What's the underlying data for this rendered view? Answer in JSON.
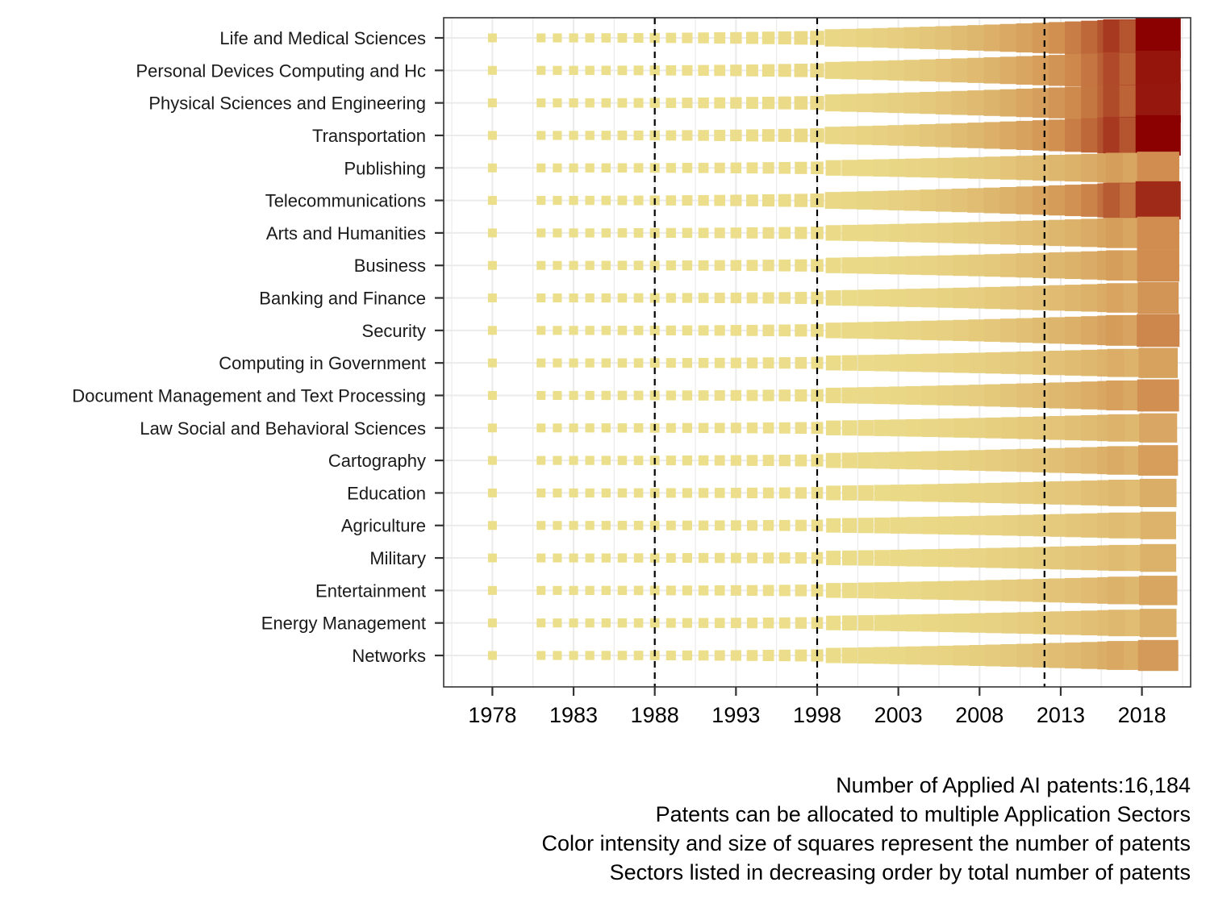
{
  "chart_data": {
    "type": "heatmap",
    "title": "",
    "xlabel": "",
    "ylabel": "",
    "xlim": [
      1975,
      2021
    ],
    "x_ticks": [
      1978,
      1983,
      1988,
      1993,
      1998,
      2003,
      2008,
      2013,
      2018
    ],
    "vlines": [
      1988,
      1998,
      2012
    ],
    "grid": true,
    "color_scale": {
      "low": "#ecdf8c",
      "mid": "#d08d4f",
      "high": "#8b0000"
    },
    "value_note": "relative patent intensity per sector-year, 0 to 1 (estimated from square size and color)",
    "categories": [
      {
        "name": "Life and Medical Sciences",
        "peak": 1.0
      },
      {
        "name": "Personal Devices Computing and Hc",
        "peak": 0.93
      },
      {
        "name": "Physical Sciences and Engineering",
        "peak": 0.92
      },
      {
        "name": "Transportation",
        "peak": 1.0
      },
      {
        "name": "Publishing",
        "peak": 0.5
      },
      {
        "name": "Telecommunications",
        "peak": 0.85
      },
      {
        "name": "Arts and Humanities",
        "peak": 0.5
      },
      {
        "name": "Business",
        "peak": 0.5
      },
      {
        "name": "Banking and Finance",
        "peak": 0.45
      },
      {
        "name": "Security",
        "peak": 0.52
      },
      {
        "name": "Computing in Government",
        "peak": 0.38
      },
      {
        "name": "Document Management and Text Processing",
        "peak": 0.48
      },
      {
        "name": "Law Social and Behavioral Sciences",
        "peak": 0.34
      },
      {
        "name": "Cartography",
        "peak": 0.4
      },
      {
        "name": "Education",
        "peak": 0.3
      },
      {
        "name": "Agriculture",
        "peak": 0.27
      },
      {
        "name": "Military",
        "peak": 0.28
      },
      {
        "name": "Entertainment",
        "peak": 0.35
      },
      {
        "name": "Energy Management",
        "peak": 0.3
      },
      {
        "name": "Networks",
        "peak": 0.42
      }
    ],
    "start_years": [
      1978,
      1981,
      1982,
      1983,
      1984,
      1985,
      1986,
      1987,
      1988,
      1989,
      1990,
      1991,
      1992,
      1993,
      1994,
      1995,
      1996,
      1997,
      1998,
      1999,
      2000,
      2001,
      2002,
      2003,
      2004,
      2005,
      2006,
      2007,
      2008,
      2009,
      2010,
      2011,
      2012,
      2013,
      2014,
      2015,
      2016,
      2017,
      2018,
      2019
    ],
    "max_year": 2019
  },
  "caption_lines": [
    "Number of Applied AI patents:16,184",
    "Patents can be allocated to multiple Application Sectors",
    "Color intensity and size of squares represent the number of patents",
    "Sectors listed in decreasing order by total number of patents"
  ]
}
